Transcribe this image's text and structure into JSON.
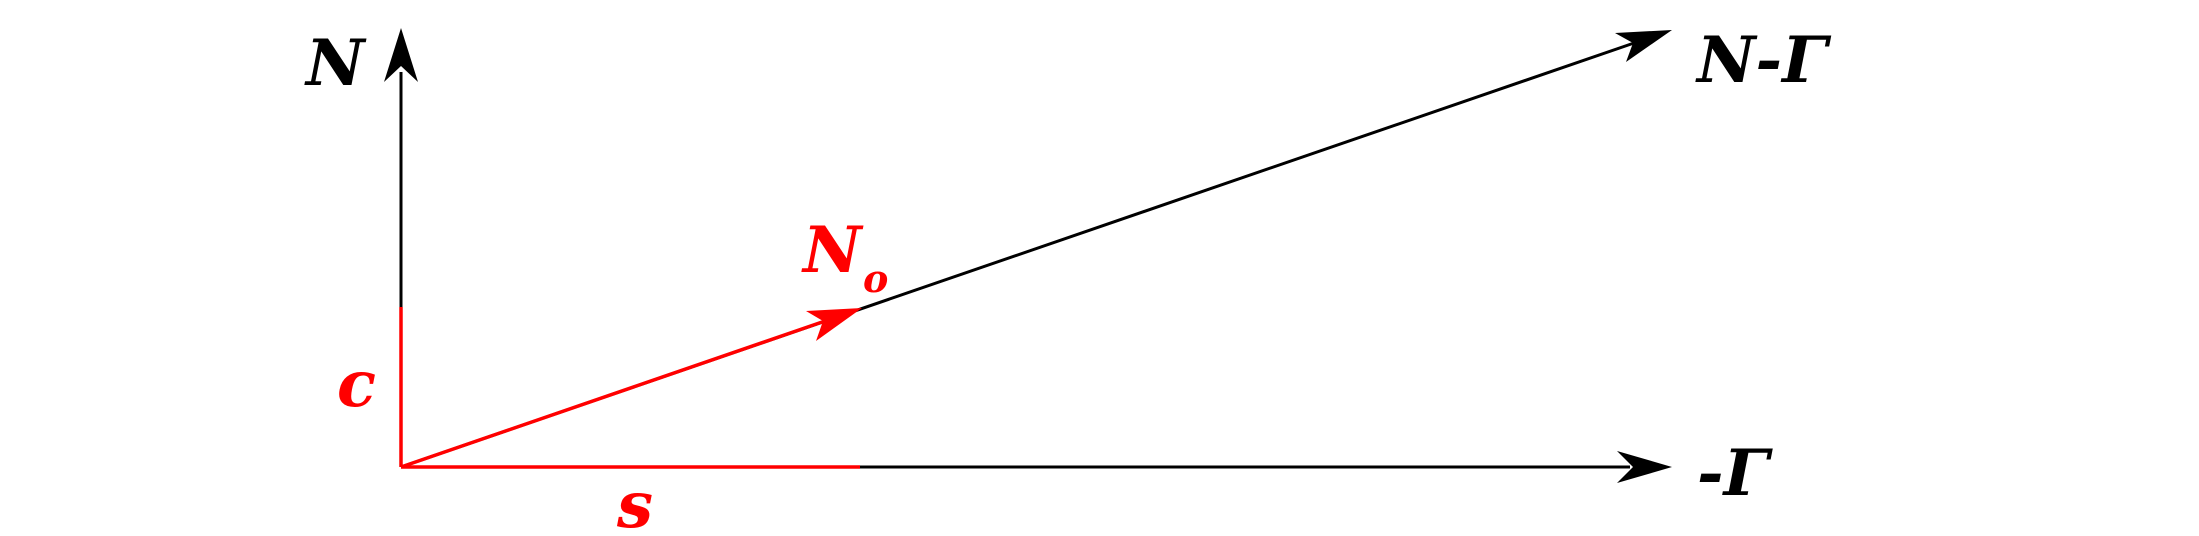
{
  "colors": {
    "axis": "#000000",
    "accent": "#ff0000",
    "background": "#ffffff"
  },
  "labels": {
    "n_axis": "N",
    "neg_gamma_axis": "-Γ",
    "resultant": "N-Γ",
    "n0_main": "N",
    "n0_sub": "o",
    "c_component": "c",
    "s_component": "s"
  }
}
